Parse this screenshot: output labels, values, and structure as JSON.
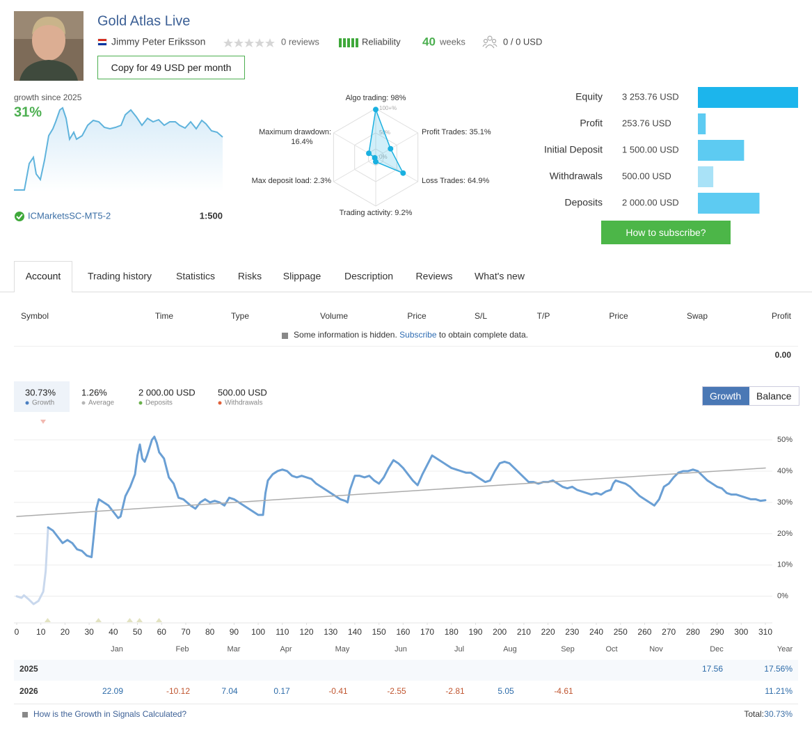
{
  "header": {
    "title": "Gold Atlas Live",
    "author": "Jimmy Peter Eriksson",
    "reviews": "0 reviews",
    "reliability": "Reliability",
    "weeks": 40,
    "weeks_label": "weeks",
    "subscribers": "0 / 0 USD",
    "copy_button": "Copy for 49 USD per month"
  },
  "growth_summary": {
    "label": "growth since 2025",
    "value": "31%",
    "server": "ICMarketsSC-MT5-2",
    "leverage": "1:500"
  },
  "radar": {
    "type": "radar",
    "color": "#1ab0e0",
    "axes": [
      {
        "label": "Algo trading: 98%",
        "value": 98
      },
      {
        "label": "Profit Trades: 35.1%",
        "value": 35.1
      },
      {
        "label": "Loss Trades: 64.9%",
        "value": 64.9
      },
      {
        "label": "Trading activity: 9.2%",
        "value": 9.2
      },
      {
        "label": "Max deposit load: 2.3%",
        "value": 2.3
      },
      {
        "label": "Maximum drawdown: 16.4%",
        "value": 16.4
      }
    ],
    "rlim": [
      0,
      100
    ],
    "rticks": [
      {
        "value": 100,
        "label": "100+%"
      },
      {
        "value": 50,
        "label": "50%"
      },
      {
        "value": 0,
        "label": "0%"
      }
    ]
  },
  "account_stats": {
    "type": "bar",
    "orientation": "horizontal",
    "categories": [
      "Equity",
      "Profit",
      "Initial Deposit",
      "Withdrawals",
      "Deposits"
    ],
    "values": [
      3253.76,
      253.76,
      1500,
      500,
      2000
    ],
    "value_labels": [
      "3 253.76 USD",
      "253.76 USD",
      "1 500.00 USD",
      "500.00 USD",
      "2 000.00 USD"
    ],
    "colors": [
      "#1cb5ec",
      "#5dcbf2",
      "#5dcbf2",
      "#a9e2f7",
      "#5dcbf2"
    ]
  },
  "subscribe_button": "How to subscribe?",
  "tabs": [
    "Account",
    "Trading history",
    "Statistics",
    "Risks",
    "Slippage",
    "Description",
    "Reviews",
    "What's new"
  ],
  "active_tab": 0,
  "table": {
    "columns": [
      "Symbol",
      "Time",
      "Type",
      "Volume",
      "Price",
      "S/L",
      "T/P",
      "Price",
      "Swap",
      "Profit"
    ],
    "notice": {
      "before": "Some information is hidden.",
      "link": "Subscribe",
      "after": "to obtain complete data."
    },
    "total": "0.00"
  },
  "summary": [
    {
      "value": "30.73%",
      "label": "Growth",
      "color": "#4a7fc1"
    },
    {
      "value": "1.26%",
      "label": "Average",
      "color": "#b5b5b5"
    },
    {
      "value": "2 000.00 USD",
      "label": "Deposits",
      "color": "#6ab04c"
    },
    {
      "value": "500.00 USD",
      "label": "Withdrawals",
      "color": "#e0603a"
    }
  ],
  "view_toggle": [
    "Growth",
    "Balance"
  ],
  "chart_data": {
    "type": "line",
    "series": [
      {
        "color": "#c9d8ed",
        "x": [
          0,
          2,
          3,
          5,
          7,
          9,
          11,
          12,
          13
        ],
        "values": [
          0,
          -0.5,
          0.3,
          -1,
          -2.5,
          -1.5,
          1.5,
          8,
          22
        ]
      },
      {
        "color": "#6a9fd4",
        "x": [
          13,
          15,
          17,
          19,
          21,
          23,
          25,
          27,
          29,
          31,
          32,
          33,
          34,
          36,
          38,
          40,
          42,
          43,
          45,
          47,
          49,
          50,
          51,
          52,
          53,
          54,
          56,
          57,
          58,
          59,
          61,
          63,
          65,
          67,
          69,
          72,
          74,
          76,
          78,
          80,
          82,
          84,
          86,
          88,
          90,
          92,
          94,
          96,
          98,
          100,
          102,
          103,
          104,
          106,
          108,
          110,
          112,
          114,
          116,
          118,
          120,
          122,
          124,
          126,
          128,
          130,
          132,
          134,
          136,
          137,
          138,
          140,
          142,
          144,
          146,
          148,
          150,
          152,
          154,
          156,
          158,
          160,
          162,
          164,
          166,
          168,
          170,
          172,
          174,
          176,
          178,
          180,
          182,
          184,
          186,
          188,
          190,
          192,
          194,
          196,
          198,
          200,
          202,
          204,
          206,
          208,
          210,
          212,
          214,
          216,
          218,
          220,
          222,
          224,
          226,
          228,
          230,
          232,
          234,
          236,
          238,
          240,
          242,
          244,
          246,
          247,
          248,
          250,
          252,
          254,
          256,
          258,
          260,
          262,
          264,
          266,
          268,
          270,
          272,
          274,
          276,
          278,
          280,
          282,
          284,
          286,
          288,
          290,
          292,
          294,
          296,
          298,
          300,
          302,
          304,
          306,
          308,
          310
        ],
        "values": [
          22,
          21,
          19,
          17,
          18,
          17,
          15,
          14.5,
          13,
          12.5,
          20,
          28,
          31,
          30,
          29,
          27,
          25,
          25.5,
          32,
          35,
          39,
          45,
          48.5,
          44,
          43,
          45,
          50,
          51,
          49,
          46,
          44,
          38,
          36,
          31.5,
          31,
          29,
          28,
          30,
          31,
          30,
          30.5,
          30,
          29,
          31.5,
          31,
          30,
          29,
          28,
          27,
          26,
          26,
          33,
          37,
          39,
          40,
          40.5,
          40,
          38.5,
          38,
          38.5,
          38,
          37.5,
          36,
          35,
          34,
          33,
          32,
          31,
          30.5,
          30,
          34,
          38.5,
          38.5,
          38,
          38.5,
          37,
          36,
          38,
          41,
          43.5,
          42.5,
          41,
          39,
          37,
          35.5,
          39,
          42,
          45,
          44,
          43,
          42,
          41,
          40.5,
          40,
          39.5,
          39.5,
          38.5,
          37.5,
          36.5,
          37,
          40,
          42.5,
          43,
          42.5,
          41,
          39.5,
          38,
          36.5,
          36.5,
          36,
          36.5,
          36.5,
          37,
          36,
          35,
          34.5,
          35,
          34,
          33.5,
          33,
          32.5,
          33,
          32.5,
          33.5,
          34,
          36,
          37,
          36.5,
          36,
          35,
          33.5,
          32,
          31,
          30,
          29,
          31,
          35,
          36,
          38,
          39.5,
          40,
          40,
          40.5,
          40,
          38.5,
          37,
          36,
          35,
          34.5,
          33,
          32.5,
          32.5,
          32,
          31.5,
          31,
          31,
          30.5,
          30.7
        ]
      }
    ],
    "trendline": {
      "color": "#ababab",
      "x": [
        0,
        310
      ],
      "values": [
        25.5,
        41
      ]
    },
    "xlim": [
      0,
      310
    ],
    "ylim": [
      -8.5,
      55
    ],
    "xticks": [
      0,
      10,
      20,
      30,
      40,
      50,
      60,
      70,
      80,
      90,
      100,
      110,
      120,
      130,
      140,
      150,
      160,
      170,
      180,
      190,
      200,
      210,
      220,
      230,
      240,
      250,
      260,
      270,
      280,
      290,
      300,
      310
    ],
    "yticks": [
      {
        "value": 0,
        "label": "0%"
      },
      {
        "value": 10,
        "label": "10%"
      },
      {
        "value": 20,
        "label": "20%"
      },
      {
        "value": 30,
        "label": "30%"
      },
      {
        "value": 40,
        "label": "40%"
      },
      {
        "value": 50,
        "label": "50%"
      }
    ],
    "grid": true,
    "month_labels": [
      "Jan",
      "Feb",
      "Mar",
      "Apr",
      "May",
      "Jun",
      "Jul",
      "Aug",
      "Sep",
      "Oct",
      "Nov",
      "Dec",
      "Year"
    ]
  },
  "monthly_returns": {
    "rows": [
      {
        "year": "2025",
        "months": [
          null,
          null,
          null,
          null,
          null,
          null,
          null,
          null,
          null,
          null,
          null,
          17.56
        ],
        "total": "17.56%"
      },
      {
        "year": "2026",
        "months": [
          22.09,
          -10.12,
          7.04,
          0.17,
          -0.41,
          -2.55,
          -2.81,
          5.05,
          -4.61,
          null,
          null,
          null
        ],
        "total": "11.21%"
      }
    ]
  },
  "footer": {
    "link": "How is the Growth in Signals Calculated?",
    "total_label": "Total:",
    "total": "30.73%"
  }
}
